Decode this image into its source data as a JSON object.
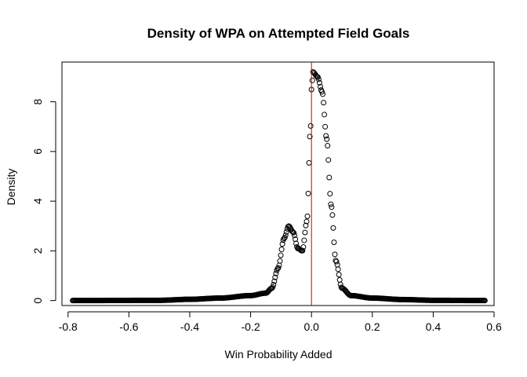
{
  "chart_data": {
    "type": "scatter",
    "title": "Density of WPA on Attempted Field Goals",
    "xlabel": "Win Probability Added",
    "ylabel": "Density",
    "xlim": [
      -0.82,
      0.6
    ],
    "ylim": [
      -0.2,
      9.6
    ],
    "xticks": [
      -0.8,
      -0.6,
      -0.4,
      -0.2,
      0.0,
      0.2,
      0.4,
      0.6
    ],
    "xtick_labels": [
      "-0.8",
      "-0.6",
      "-0.4",
      "-0.2",
      "0.0",
      "0.2",
      "0.4",
      "0.6"
    ],
    "yticks": [
      0,
      2,
      4,
      6,
      8
    ],
    "ytick_labels": [
      "0",
      "2",
      "4",
      "6",
      "8"
    ],
    "x_range": [
      -0.785,
      0.57
    ],
    "n_points": 512,
    "reference_line": {
      "x": 0.0,
      "color": "#cc0000"
    },
    "point_color": "#000000",
    "grid": false,
    "legend": "none",
    "density_profile": [
      [
        -0.785,
        0.0
      ],
      [
        -0.5,
        0.01
      ],
      [
        -0.4,
        0.05
      ],
      [
        -0.3,
        0.1
      ],
      [
        -0.2,
        0.2
      ],
      [
        -0.15,
        0.3
      ],
      [
        -0.13,
        0.5
      ],
      [
        -0.11,
        1.3
      ],
      [
        -0.09,
        2.5
      ],
      [
        -0.075,
        3.0
      ],
      [
        -0.06,
        2.75
      ],
      [
        -0.045,
        2.1
      ],
      [
        -0.03,
        2.0
      ],
      [
        -0.015,
        3.2
      ],
      [
        -0.003,
        7.0
      ],
      [
        0.0,
        8.5
      ],
      [
        0.005,
        9.2
      ],
      [
        0.02,
        9.0
      ],
      [
        0.035,
        8.4
      ],
      [
        0.05,
        6.5
      ],
      [
        0.065,
        3.8
      ],
      [
        0.08,
        1.6
      ],
      [
        0.1,
        0.5
      ],
      [
        0.13,
        0.2
      ],
      [
        0.2,
        0.1
      ],
      [
        0.3,
        0.04
      ],
      [
        0.4,
        0.01
      ],
      [
        0.57,
        0.0
      ]
    ]
  }
}
